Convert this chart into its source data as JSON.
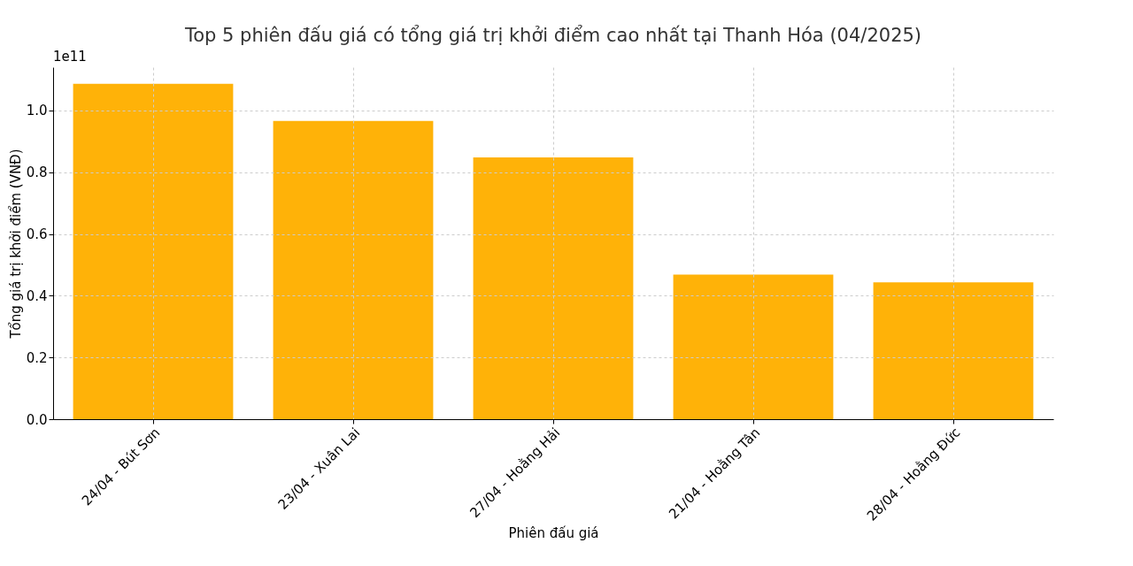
{
  "chart_data": {
    "type": "bar",
    "title": "Top 5 phiên đấu giá có tổng giá trị khởi điểm cao nhất tại Thanh Hóa (04/2025)",
    "xlabel": "Phiên đấu giá",
    "ylabel": "Tổng giá trị khởi điểm (VNĐ)",
    "categories": [
      "24/04 - Bút Sơn",
      "23/04 - Xuân Lai",
      "27/04 - Hoằng Hải",
      "21/04 - Hoằng Tân",
      "28/04 - Hoằng Đức"
    ],
    "values": [
      1.086,
      0.966,
      0.848,
      0.468,
      0.443
    ],
    "color": "#ffb000",
    "ylim": [
      0,
      1.14
    ],
    "yticks": [
      {
        "value": 0,
        "label": "0.0"
      },
      0.2,
      0.4,
      0.6,
      0.8,
      {
        "value": 1,
        "label": "1.0"
      }
    ],
    "annotations": [
      "1e11"
    ],
    "grid": true
  }
}
